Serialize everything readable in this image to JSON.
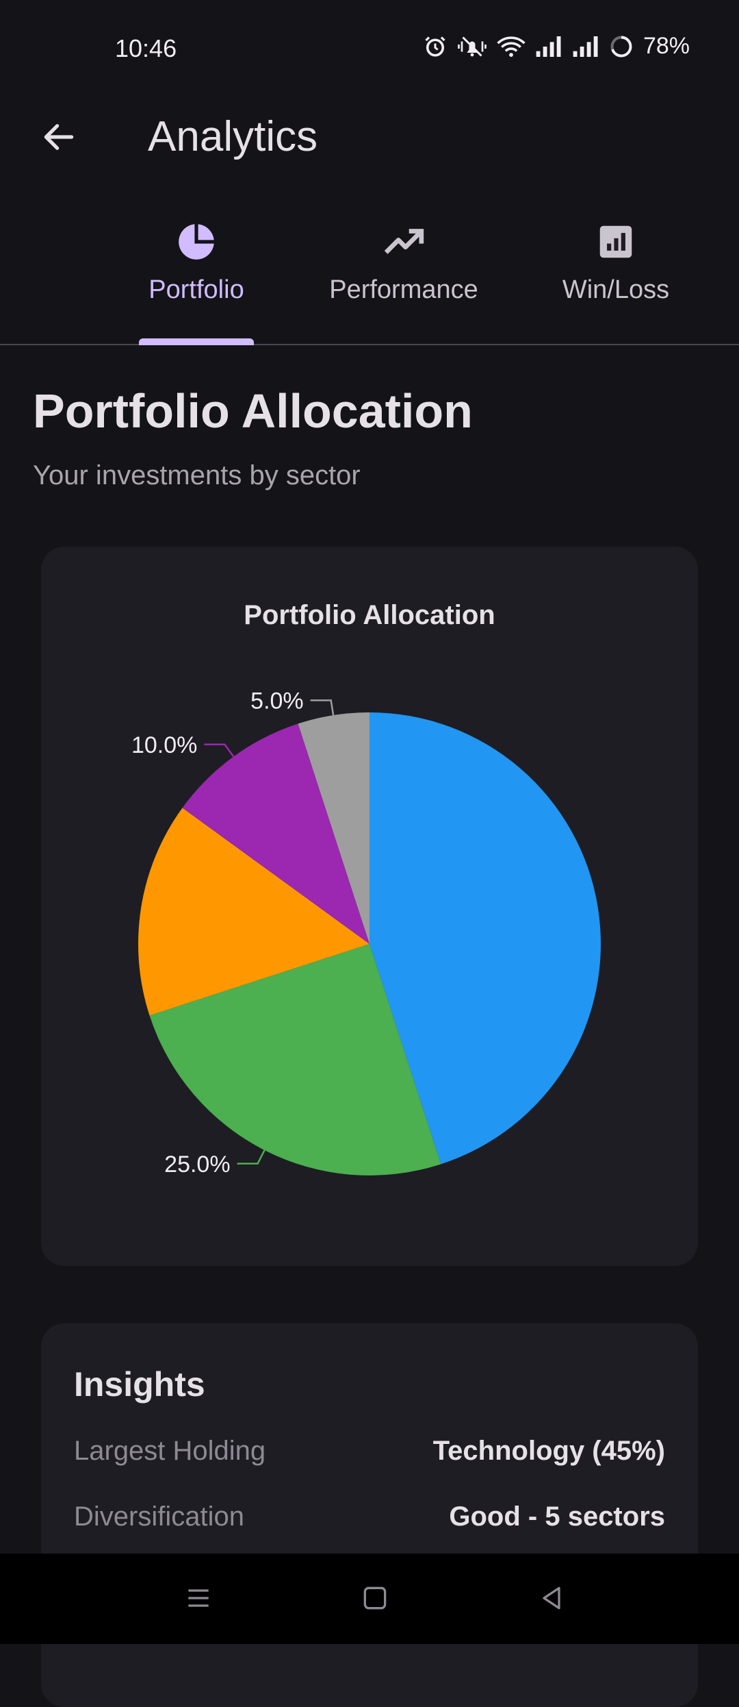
{
  "status_bar": {
    "time": "10:46",
    "battery": "78%",
    "icons": [
      "alarm-icon",
      "vibrate-icon",
      "wifi-icon",
      "signal-icon",
      "signal-icon",
      "battery-icon"
    ]
  },
  "app_bar": {
    "title": "Analytics",
    "back_icon": "arrow-left-icon"
  },
  "tabs": [
    {
      "label": "Portfolio",
      "icon": "pie-chart-icon",
      "selected": true
    },
    {
      "label": "Performance",
      "icon": "trending-up-icon",
      "selected": false
    },
    {
      "label": "Win/Loss",
      "icon": "bar-chart-icon",
      "selected": false
    }
  ],
  "page": {
    "title": "Portfolio Allocation",
    "subtitle": "Your investments by sector"
  },
  "chart_data": {
    "type": "pie",
    "title": "Portfolio Allocation",
    "slices": [
      {
        "value": 45,
        "label": "",
        "color": "#2196f3"
      },
      {
        "value": 25,
        "label": "25.0%",
        "color": "#4caf50"
      },
      {
        "value": 15,
        "label": "",
        "color": "#ff9800"
      },
      {
        "value": 10,
        "label": "10.0%",
        "color": "#9c27b0"
      },
      {
        "value": 5,
        "label": "5.0%",
        "color": "#9e9e9e"
      }
    ]
  },
  "insights": {
    "title": "Insights",
    "rows": [
      {
        "label": "Largest Holding",
        "value": "Technology (45%)"
      },
      {
        "label": "Diversification",
        "value": "Good - 5 sectors"
      }
    ]
  },
  "colors": {
    "background": "#141318",
    "card": "#1e1d23",
    "accent": "#d0bcff"
  },
  "nav_bar": {
    "icons": [
      "menu-icon",
      "home-square-icon",
      "back-triangle-icon"
    ]
  }
}
